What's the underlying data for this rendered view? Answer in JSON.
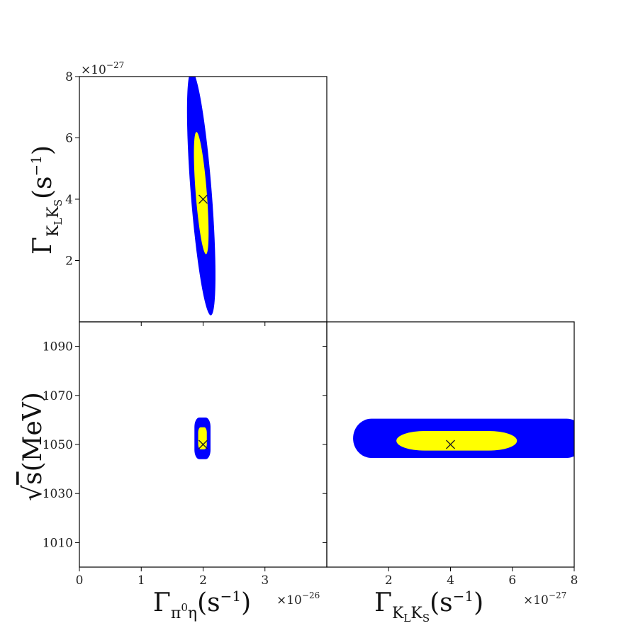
{
  "colors": {
    "outer": "#0000ff",
    "inner": "#ffff00",
    "marker": "#222222",
    "frame": "#000000"
  },
  "chart_data": [
    {
      "type": "contour",
      "panel": "top-left",
      "xlim": [
        0,
        4
      ],
      "ylim": [
        0,
        8
      ],
      "x_ticks": [],
      "x_ticks_unlabeled": [
        1,
        2,
        3
      ],
      "y_ticks": [
        "8",
        "6",
        "4",
        "2"
      ],
      "y_tick_values": [
        8,
        6,
        4,
        2
      ],
      "y_multiplier": "×10",
      "y_multiplier_exp": "−27",
      "ylabel": {
        "main": "Γ",
        "sub": "K",
        "subsub1": "L",
        "sub2": "K",
        "subsub2": "S",
        "rest": "(s",
        "sup": "−1",
        "close": ")"
      },
      "best_fit": {
        "x": 2.0,
        "y": 4.0
      },
      "regions": [
        {
          "level": "outer",
          "center": {
            "x": 1.97,
            "y": 4.2
          },
          "extent_x": 0.17,
          "extent_y": 4.0
        },
        {
          "level": "inner",
          "center": {
            "x": 1.97,
            "y": 4.2
          },
          "extent_x": 0.09,
          "extent_y": 2.0
        }
      ]
    },
    {
      "type": "contour",
      "panel": "bottom-left",
      "xlim": [
        0,
        4
      ],
      "ylim": [
        1000,
        1100
      ],
      "x_ticks": [
        "0",
        "1",
        "2",
        "3"
      ],
      "x_tick_values": [
        0,
        1,
        2,
        3
      ],
      "y_ticks": [
        "1090",
        "1070",
        "1050",
        "1030",
        "1010"
      ],
      "y_tick_values": [
        1090,
        1070,
        1050,
        1030,
        1010
      ],
      "x_multiplier": "×10",
      "x_multiplier_exp": "−26",
      "xlabel": {
        "main": "Γ",
        "sub": "π",
        "subsup": "0",
        "sub2": "η",
        "rest": "(s",
        "sup": "−1",
        "close": ")"
      },
      "ylabel": {
        "root": "√",
        "var": "s",
        "rest": "(MeV)"
      },
      "best_fit": {
        "x": 2.0,
        "y": 1050
      },
      "regions": [
        {
          "level": "outer",
          "center": {
            "x": 1.99,
            "y": 1052.5
          },
          "extent_x": 0.13,
          "extent_y": 8.5
        },
        {
          "level": "inner",
          "center": {
            "x": 1.99,
            "y": 1052.5
          },
          "extent_x": 0.07,
          "extent_y": 4.5
        }
      ]
    },
    {
      "type": "contour",
      "panel": "bottom-right",
      "xlim": [
        0,
        8
      ],
      "ylim": [
        1000,
        1100
      ],
      "x_ticks": [
        "2",
        "4",
        "6",
        "8"
      ],
      "x_tick_values": [
        2,
        4,
        6,
        8
      ],
      "y_ticks": [],
      "y_ticks_unlabeled": [
        1010,
        1030,
        1050,
        1070,
        1090
      ],
      "x_multiplier": "×10",
      "x_multiplier_exp": "−27",
      "xlabel": {
        "main": "Γ",
        "sub": "K",
        "subsub1": "L",
        "sub2": "K",
        "subsub2": "S",
        "rest": "(s",
        "sup": "−1",
        "close": ")"
      },
      "best_fit": {
        "x": 4.0,
        "y": 1050
      },
      "regions": [
        {
          "level": "outer",
          "center": {
            "x": 4.6,
            "y": 1052.5
          },
          "extent_x": 3.75,
          "extent_y": 8.0
        },
        {
          "level": "inner",
          "center": {
            "x": 4.2,
            "y": 1051.5
          },
          "extent_x": 1.95,
          "extent_y": 4.0
        }
      ]
    }
  ]
}
